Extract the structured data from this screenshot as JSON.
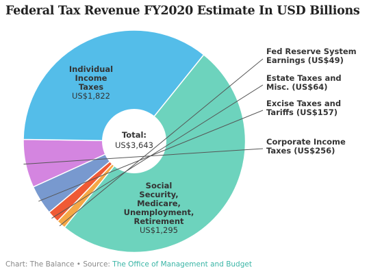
{
  "chart_data": {
    "type": "pie",
    "title": "Federal Tax Revenue FY2020 Estimate In USD Billions",
    "center_label": {
      "title": "Total:",
      "value": "US$3,643"
    },
    "slices": [
      {
        "name": "Individual Income Taxes",
        "value": 1822,
        "label_lines": [
          "Individual",
          "Income",
          "Taxes"
        ],
        "value_label": "US$1,822",
        "color": "#6dd3bd",
        "label_position": "inside"
      },
      {
        "name": "Fed Reserve System Earnings",
        "value": 49,
        "label_lines": [
          "Fed Reserve System",
          "Earnings (US$49)"
        ],
        "color": "#f5a846",
        "label_position": "outside"
      },
      {
        "name": "Estate Taxes and Misc.",
        "value": 64,
        "label_lines": [
          "Estate Taxes and",
          "Misc. (US$64)"
        ],
        "color": "#ef5a35",
        "label_position": "outside"
      },
      {
        "name": "Excise Taxes and Tariffs",
        "value": 157,
        "label_lines": [
          "Excise Taxes and",
          "Tariffs (US$157)"
        ],
        "color": "#7899cf",
        "label_position": "outside"
      },
      {
        "name": "Corporate Income Taxes",
        "value": 256,
        "label_lines": [
          "Corporate Income",
          "Taxes (US$256)"
        ],
        "color": "#d485e0",
        "label_position": "outside"
      },
      {
        "name": "Social Security, Medicare, Unemployment, Retirement",
        "value": 1295,
        "label_lines": [
          "Social",
          "Security,",
          "Medicare,",
          "Unemployment,",
          "Retirement"
        ],
        "value_label": "US$1,295",
        "color": "#54bde9",
        "label_position": "inside"
      }
    ]
  },
  "footer": {
    "prefix": "Chart: The Balance • Source: ",
    "source_link": "The Office of Management and Budget"
  }
}
